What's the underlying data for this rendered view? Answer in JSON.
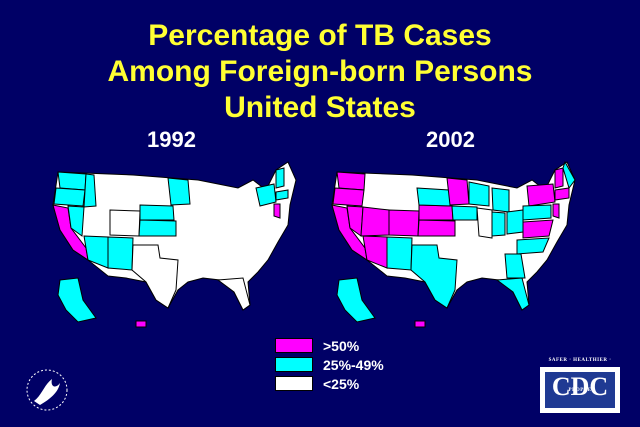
{
  "title": {
    "line1": "Percentage of TB Cases",
    "line2": "Among Foreign-born Persons",
    "line3": "United States"
  },
  "maps": [
    {
      "year": "1992"
    },
    {
      "year": "2002"
    }
  ],
  "legend": [
    {
      "label": ">50%",
      "color": "#ff00ff"
    },
    {
      "label": "25%-49%",
      "color": "#00ffff"
    },
    {
      "label": "<25%",
      "color": "#ffffff"
    }
  ],
  "logos": {
    "cdc_text": "CDC",
    "cdc_tagline": "SAFER · HEALTHIER · PEOPLE"
  },
  "colors": {
    "background": "#000066",
    "title": "#ffff33",
    "high": "#ff00ff",
    "mid": "#00ffff",
    "low": "#ffffff"
  }
}
